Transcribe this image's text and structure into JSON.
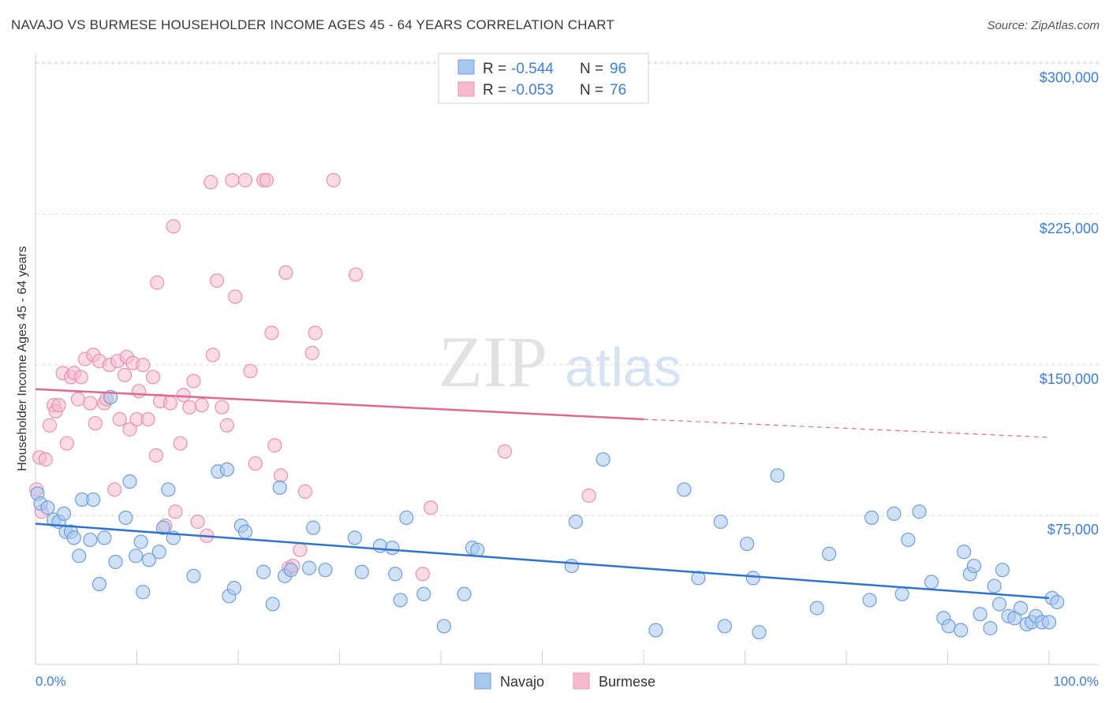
{
  "header": {
    "title": "NAVAJO VS BURMESE HOUSEHOLDER INCOME AGES 45 - 64 YEARS CORRELATION CHART",
    "source": "Source: ZipAtlas.com"
  },
  "watermark": {
    "zip": "ZIP",
    "atlas": "atlas"
  },
  "legend_box": {
    "rows": [
      {
        "r_label": "R =",
        "r_value": "-0.544",
        "n_label": "N =",
        "n_value": "96"
      },
      {
        "r_label": "R =",
        "r_value": "-0.053",
        "n_label": "N =",
        "n_value": "76"
      }
    ]
  },
  "bottom_legend": {
    "items": [
      "Navajo",
      "Burmese"
    ]
  },
  "colors": {
    "navajo_fill": "#a9c8ef",
    "navajo_stroke": "#6c9fdc",
    "navajo_line": "#2f74d0",
    "burmese_fill": "#f6bccd",
    "burmese_stroke": "#e991ad",
    "burmese_line": "#e2688f",
    "value_text": "#3b7ddd",
    "grid": "#d9d9d9"
  },
  "chart_data": {
    "type": "scatter",
    "title": "NAVAJO VS BURMESE HOUSEHOLDER INCOME AGES 45 - 64 YEARS CORRELATION CHART",
    "xlabel": "",
    "ylabel": "Householder Income Ages 45 - 64 years",
    "xlim": [
      0,
      100
    ],
    "ylim": [
      8000,
      312000
    ],
    "x_tick_labels": [
      "0.0%",
      "100.0%"
    ],
    "y_ticks": [
      75000,
      150000,
      225000,
      300000
    ],
    "y_tick_labels": [
      "$75,000",
      "$150,000",
      "$225,000",
      "$300,000"
    ],
    "grid": true,
    "legend": "bottom-center",
    "series": [
      {
        "name": "Navajo",
        "r": -0.544,
        "n": 96,
        "trend": {
          "x": [
            0,
            100
          ],
          "y": [
            78000,
            41000
          ]
        },
        "points": [
          [
            0.2,
            93000
          ],
          [
            0.5,
            88000
          ],
          [
            1.2,
            86000
          ],
          [
            1.8,
            80000
          ],
          [
            2.3,
            79000
          ],
          [
            2.8,
            83000
          ],
          [
            3.0,
            74000
          ],
          [
            3.5,
            74000
          ],
          [
            3.8,
            71000
          ],
          [
            4.3,
            62000
          ],
          [
            4.6,
            90000
          ],
          [
            5.4,
            70000
          ],
          [
            5.7,
            90000
          ],
          [
            6.3,
            48000
          ],
          [
            6.8,
            71000
          ],
          [
            7.4,
            141000
          ],
          [
            7.9,
            59000
          ],
          [
            8.9,
            81000
          ],
          [
            9.3,
            99000
          ],
          [
            9.9,
            62000
          ],
          [
            10.4,
            69000
          ],
          [
            10.6,
            44000
          ],
          [
            11.2,
            60000
          ],
          [
            12.2,
            64000
          ],
          [
            12.6,
            76000
          ],
          [
            13.1,
            95000
          ],
          [
            13.6,
            71000
          ],
          [
            15.6,
            52000
          ],
          [
            18.0,
            104000
          ],
          [
            18.9,
            105000
          ],
          [
            19.1,
            42000
          ],
          [
            19.6,
            46000
          ],
          [
            20.3,
            77000
          ],
          [
            20.7,
            74000
          ],
          [
            22.5,
            54000
          ],
          [
            23.4,
            38000
          ],
          [
            24.1,
            96000
          ],
          [
            24.6,
            52000
          ],
          [
            25.2,
            55000
          ],
          [
            27.0,
            56000
          ],
          [
            27.4,
            76000
          ],
          [
            28.6,
            55000
          ],
          [
            31.5,
            71000
          ],
          [
            32.2,
            54000
          ],
          [
            34.0,
            67000
          ],
          [
            35.2,
            66000
          ],
          [
            35.5,
            53000
          ],
          [
            36.0,
            40000
          ],
          [
            36.6,
            81000
          ],
          [
            38.3,
            43000
          ],
          [
            40.3,
            27000
          ],
          [
            42.3,
            43000
          ],
          [
            43.1,
            66000
          ],
          [
            43.6,
            65000
          ],
          [
            52.9,
            57000
          ],
          [
            53.3,
            79000
          ],
          [
            56.0,
            110000
          ],
          [
            61.2,
            25000
          ],
          [
            64.0,
            95000
          ],
          [
            65.4,
            51000
          ],
          [
            67.6,
            79000
          ],
          [
            68.0,
            27000
          ],
          [
            70.2,
            68000
          ],
          [
            70.8,
            51000
          ],
          [
            71.4,
            24000
          ],
          [
            73.2,
            102000
          ],
          [
            77.1,
            36000
          ],
          [
            78.3,
            63000
          ],
          [
            82.3,
            40000
          ],
          [
            82.5,
            81000
          ],
          [
            84.7,
            83000
          ],
          [
            85.5,
            43000
          ],
          [
            86.1,
            70000
          ],
          [
            87.2,
            84000
          ],
          [
            88.4,
            49000
          ],
          [
            89.6,
            31000
          ],
          [
            90.1,
            27000
          ],
          [
            91.3,
            25000
          ],
          [
            91.6,
            64000
          ],
          [
            92.2,
            53000
          ],
          [
            92.6,
            57000
          ],
          [
            93.2,
            33000
          ],
          [
            94.2,
            26000
          ],
          [
            94.6,
            47000
          ],
          [
            95.1,
            38000
          ],
          [
            95.4,
            55000
          ],
          [
            96.0,
            32000
          ],
          [
            96.6,
            31000
          ],
          [
            97.2,
            36000
          ],
          [
            97.8,
            28000
          ],
          [
            98.3,
            29000
          ],
          [
            98.7,
            32000
          ],
          [
            99.3,
            29000
          ],
          [
            100.0,
            29000
          ],
          [
            100.3,
            41000
          ],
          [
            100.8,
            39000
          ]
        ]
      },
      {
        "name": "Burmese",
        "r": -0.053,
        "n": 76,
        "trend": {
          "x": [
            0,
            60
          ],
          "y": [
            145000,
            130000
          ],
          "dashed_to": {
            "x": 100,
            "y": 121000
          }
        },
        "points": [
          [
            0.1,
            95000
          ],
          [
            0.4,
            111000
          ],
          [
            0.6,
            84000
          ],
          [
            1.0,
            110000
          ],
          [
            1.4,
            127000
          ],
          [
            1.8,
            137000
          ],
          [
            2.0,
            134000
          ],
          [
            2.3,
            137000
          ],
          [
            2.7,
            153000
          ],
          [
            3.1,
            118000
          ],
          [
            3.5,
            151000
          ],
          [
            3.8,
            153000
          ],
          [
            4.2,
            140000
          ],
          [
            4.5,
            151000
          ],
          [
            4.9,
            160000
          ],
          [
            5.4,
            138000
          ],
          [
            5.7,
            162000
          ],
          [
            5.9,
            128000
          ],
          [
            6.3,
            159000
          ],
          [
            6.8,
            138000
          ],
          [
            7.0,
            140000
          ],
          [
            7.3,
            157000
          ],
          [
            7.8,
            95000
          ],
          [
            8.1,
            159000
          ],
          [
            8.3,
            130000
          ],
          [
            8.8,
            152000
          ],
          [
            9.0,
            161000
          ],
          [
            9.3,
            125000
          ],
          [
            9.6,
            158000
          ],
          [
            10.0,
            130000
          ],
          [
            10.2,
            144000
          ],
          [
            10.6,
            157000
          ],
          [
            11.1,
            130000
          ],
          [
            11.6,
            151000
          ],
          [
            11.9,
            112000
          ],
          [
            12.0,
            198000
          ],
          [
            12.3,
            139000
          ],
          [
            12.8,
            77000
          ],
          [
            13.3,
            138000
          ],
          [
            13.6,
            226000
          ],
          [
            13.8,
            84000
          ],
          [
            14.3,
            118000
          ],
          [
            14.6,
            142000
          ],
          [
            15.2,
            136000
          ],
          [
            15.6,
            149000
          ],
          [
            16.0,
            79000
          ],
          [
            16.4,
            137000
          ],
          [
            16.9,
            72000
          ],
          [
            17.3,
            248000
          ],
          [
            17.5,
            162000
          ],
          [
            17.9,
            199000
          ],
          [
            18.4,
            136000
          ],
          [
            18.9,
            127000
          ],
          [
            19.4,
            249000
          ],
          [
            19.7,
            191000
          ],
          [
            20.7,
            249000
          ],
          [
            21.2,
            154000
          ],
          [
            21.7,
            108000
          ],
          [
            22.5,
            249000
          ],
          [
            22.8,
            249000
          ],
          [
            23.3,
            173000
          ],
          [
            23.6,
            117000
          ],
          [
            24.2,
            102000
          ],
          [
            24.7,
            203000
          ],
          [
            25.0,
            56000
          ],
          [
            25.4,
            57000
          ],
          [
            26.1,
            65000
          ],
          [
            26.6,
            94000
          ],
          [
            27.3,
            163000
          ],
          [
            27.6,
            173000
          ],
          [
            29.4,
            249000
          ],
          [
            31.6,
            202000
          ],
          [
            38.2,
            53000
          ],
          [
            39.0,
            86000
          ],
          [
            46.3,
            114000
          ],
          [
            54.6,
            92000
          ]
        ]
      }
    ]
  }
}
